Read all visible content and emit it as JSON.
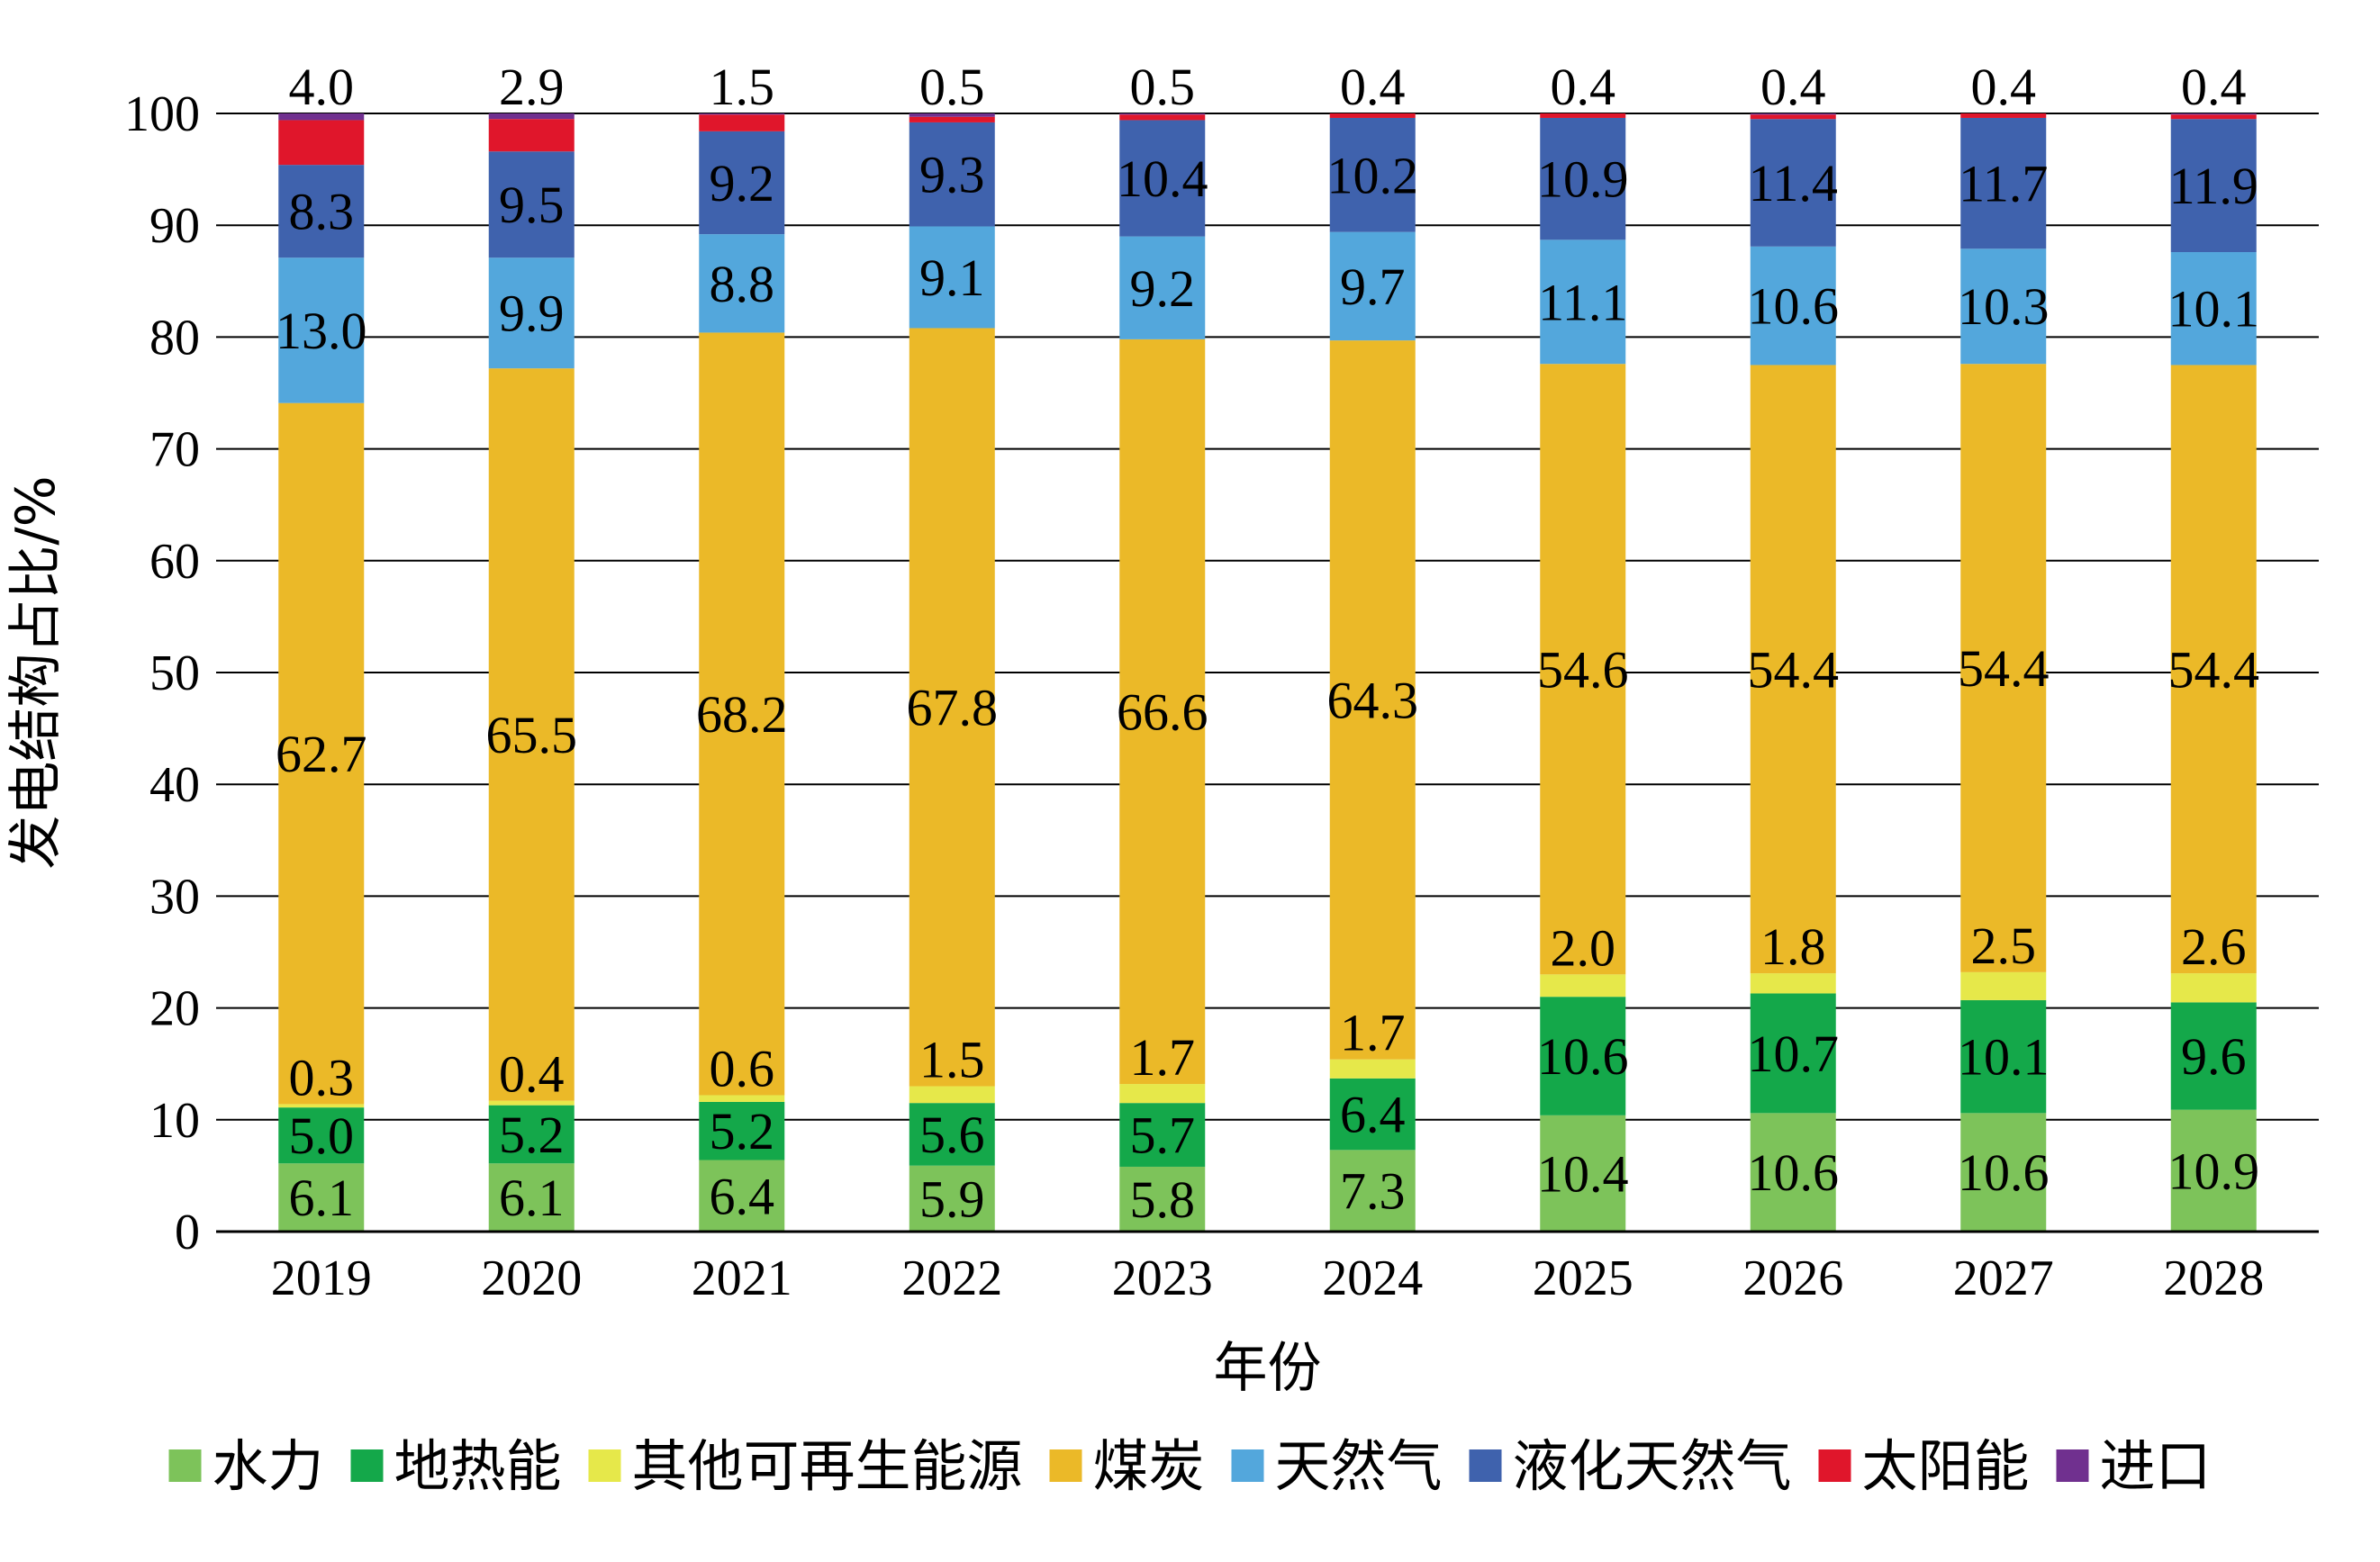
{
  "chart_data": {
    "type": "bar",
    "stacked": true,
    "title": "",
    "xlabel": "年份",
    "ylabel": "发电结构占比/%",
    "ylim": [
      0,
      100
    ],
    "yticks": [
      0,
      10,
      20,
      30,
      40,
      50,
      60,
      70,
      80,
      90,
      100
    ],
    "grid": true,
    "legend_position": "bottom",
    "categories": [
      "2019",
      "2020",
      "2021",
      "2022",
      "2023",
      "2024",
      "2025",
      "2026",
      "2027",
      "2028"
    ],
    "series": [
      {
        "name": "水力",
        "color": "#7dc35a",
        "values": [
          6.1,
          6.1,
          6.4,
          5.9,
          5.8,
          7.3,
          10.4,
          10.6,
          10.6,
          10.9
        ]
      },
      {
        "name": "地热能",
        "color": "#14a84a",
        "values": [
          5.0,
          5.2,
          5.2,
          5.6,
          5.7,
          6.4,
          10.6,
          10.7,
          10.1,
          9.6
        ]
      },
      {
        "name": "其他可再生能源",
        "color": "#e6e84a",
        "values": [
          0.3,
          0.4,
          0.6,
          1.5,
          1.7,
          1.7,
          2.0,
          1.8,
          2.5,
          2.6
        ]
      },
      {
        "name": "煤炭",
        "color": "#ebb928",
        "values": [
          62.7,
          65.5,
          68.2,
          67.8,
          66.6,
          64.3,
          54.6,
          54.4,
          54.4,
          54.4
        ]
      },
      {
        "name": "天然气",
        "color": "#53a7dc",
        "values": [
          13.0,
          9.9,
          8.8,
          9.1,
          9.2,
          9.7,
          11.1,
          10.6,
          10.3,
          10.1
        ]
      },
      {
        "name": "液化天然气",
        "color": "#3f62ad",
        "values": [
          8.3,
          9.5,
          9.2,
          9.3,
          10.4,
          10.2,
          10.9,
          11.4,
          11.7,
          11.9
        ]
      },
      {
        "name": "太阳能",
        "color": "#e0162b",
        "values": [
          4.0,
          2.9,
          1.5,
          0.5,
          0.5,
          0.4,
          0.4,
          0.4,
          0.4,
          0.4
        ]
      },
      {
        "name": "进口",
        "color": "#70308f",
        "values": [
          0.6,
          0.5,
          0.1,
          0.3,
          0.1,
          0.0,
          0.0,
          0.1,
          0.0,
          0.1
        ]
      }
    ],
    "data_labels": [
      [
        "6.1",
        "6.1",
        "6.4",
        "5.9",
        "5.8",
        "7.3",
        "10.4",
        "10.6",
        "10.6",
        "10.9"
      ],
      [
        "5.0",
        "5.2",
        "5.2",
        "5.6",
        "5.7",
        "6.4",
        "10.6",
        "10.7",
        "10.1",
        "9.6"
      ],
      [
        "0.3",
        "0.4",
        "0.6",
        "1.5",
        "1.7",
        "1.7",
        "2.0",
        "1.8",
        "2.5",
        "2.6"
      ],
      [
        "62.7",
        "65.5",
        "68.2",
        "67.8",
        "66.6",
        "64.3",
        "54.6",
        "54.4",
        "54.4",
        "54.4"
      ],
      [
        "13.0",
        "9.9",
        "8.8",
        "9.1",
        "9.2",
        "9.7",
        "11.1",
        "10.6",
        "10.3",
        "10.1"
      ],
      [
        "8.3",
        "9.5",
        "9.2",
        "9.3",
        "10.4",
        "10.2",
        "10.9",
        "11.4",
        "11.7",
        "11.9"
      ],
      [
        "4.0",
        "2.9",
        "1.5",
        "0.5",
        "0.5",
        "0.4",
        "0.4",
        "0.4",
        "0.4",
        "0.4"
      ],
      [
        null,
        null,
        null,
        null,
        null,
        null,
        null,
        null,
        null,
        null
      ]
    ]
  }
}
